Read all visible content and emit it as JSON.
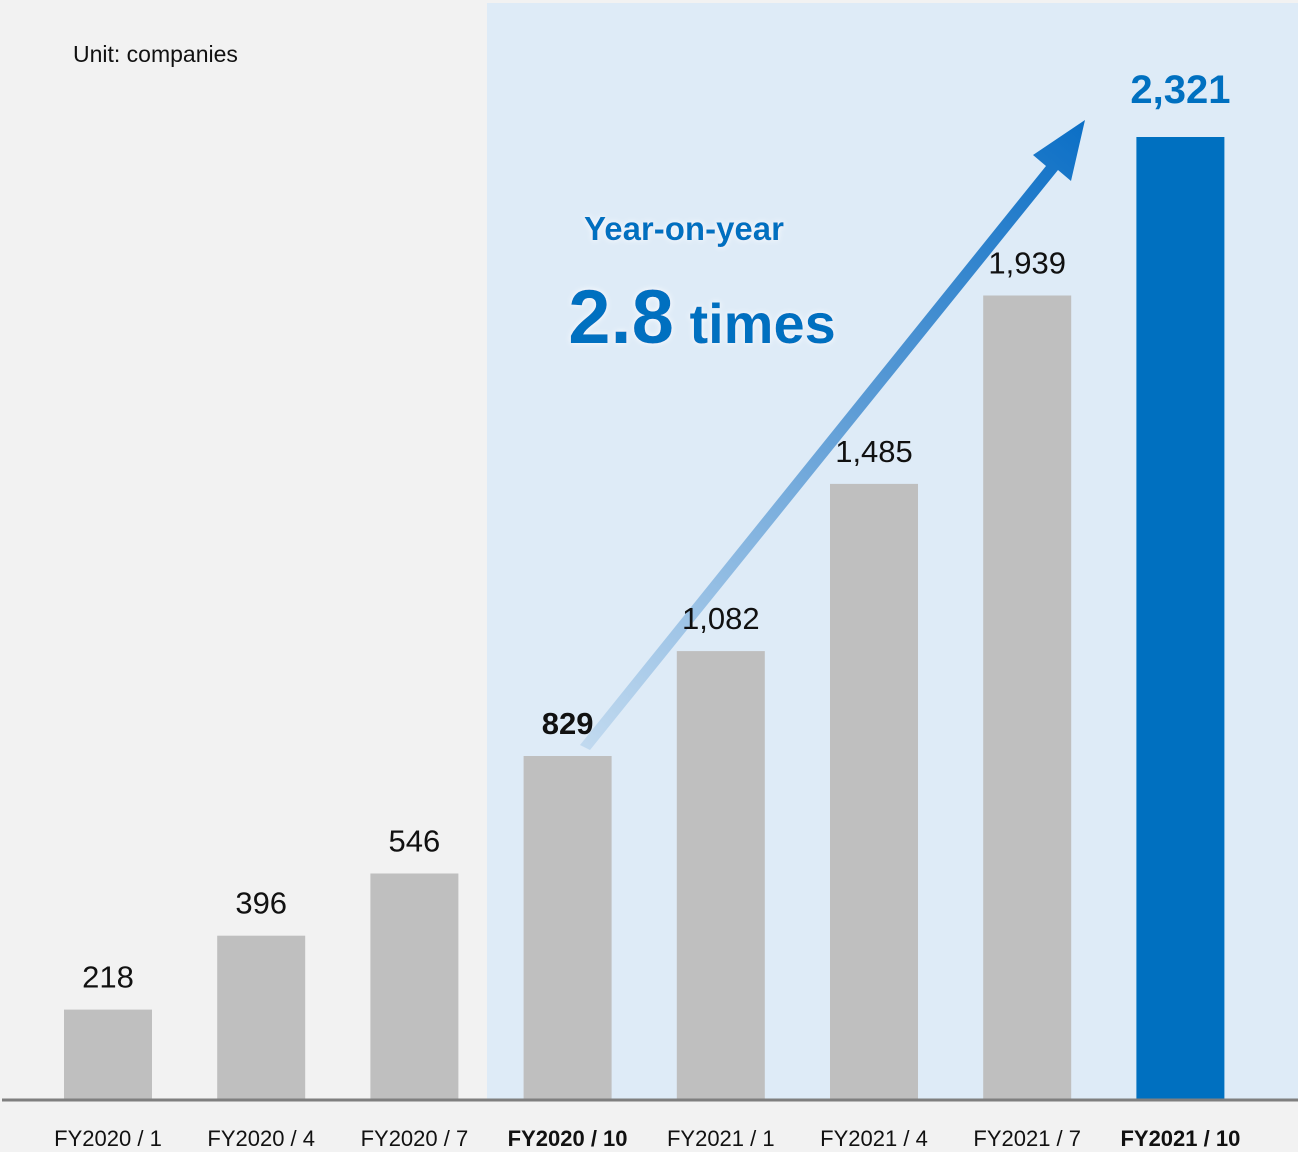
{
  "unit_label": "Unit: companies",
  "annotation": {
    "line1": "Year-on-year",
    "line2_number": "2.8",
    "line2_suffix": " times"
  },
  "colors": {
    "page_background": "#f2f2f2",
    "highlight_panel": "#deebf7",
    "bar_default": "#bfbfbf",
    "bar_highlight": "#0070c0",
    "annotation_text": "#0070c0",
    "value_text": "#111111",
    "axis": "#7f7f7f"
  },
  "chart_data": {
    "type": "bar",
    "categories": [
      "FY2020 / 1",
      "FY2020 / 4",
      "FY2020 / 7",
      "FY2020 / 10",
      "FY2021 / 1",
      "FY2021 / 4",
      "FY2021 / 7",
      "FY2021 / 10"
    ],
    "values": [
      218,
      396,
      546,
      829,
      1082,
      1485,
      1939,
      2321
    ],
    "data_labels": [
      "218",
      "396",
      "546",
      "829",
      "1,082",
      "1,485",
      "1,939",
      "2,321"
    ],
    "bold_categories": [
      "FY2020 / 10",
      "FY2021 / 10"
    ],
    "highlight_bar": "FY2021 / 10",
    "highlight_region": [
      "FY2020 / 10",
      "FY2021 / 10"
    ],
    "arrow": {
      "from": "FY2020 / 10",
      "to": "FY2021 / 10"
    },
    "title": "",
    "xlabel": "",
    "ylabel": "",
    "ylim": [
      0,
      2500
    ],
    "grid": false,
    "legend": "none"
  }
}
